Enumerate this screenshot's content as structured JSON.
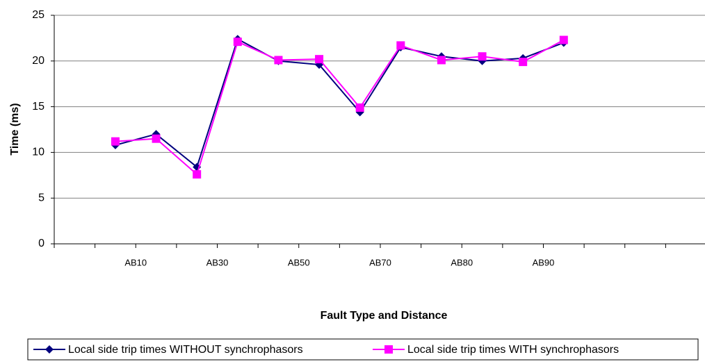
{
  "chart_data": {
    "type": "line",
    "x_label": "Fault Type and Distance",
    "y_label": "Time (ms)",
    "categories": [
      null,
      null,
      "AB10",
      null,
      "AB30",
      null,
      "AB50",
      null,
      "AB70",
      null,
      "AB80",
      null,
      "AB90",
      null,
      null,
      null
    ],
    "series": [
      {
        "name": "Local side trip times WITHOUT synchrophasors",
        "color": "#00007f",
        "marker": "diamond",
        "values": [
          null,
          10.8,
          12.0,
          8.4,
          22.4,
          20.0,
          19.6,
          14.4,
          21.5,
          20.5,
          20.0,
          20.3,
          22.0,
          null,
          null,
          null
        ]
      },
      {
        "name": "Local side trip times WITH synchrophasors",
        "color": "#ff00ff",
        "marker": "square",
        "values": [
          null,
          11.2,
          11.5,
          7.6,
          22.1,
          20.1,
          20.2,
          14.9,
          21.7,
          20.1,
          20.5,
          19.9,
          22.3,
          null,
          null,
          null
        ]
      }
    ],
    "ylim": [
      0,
      25
    ],
    "yticks": [
      0,
      5,
      10,
      15,
      20,
      25
    ],
    "grid": true
  }
}
